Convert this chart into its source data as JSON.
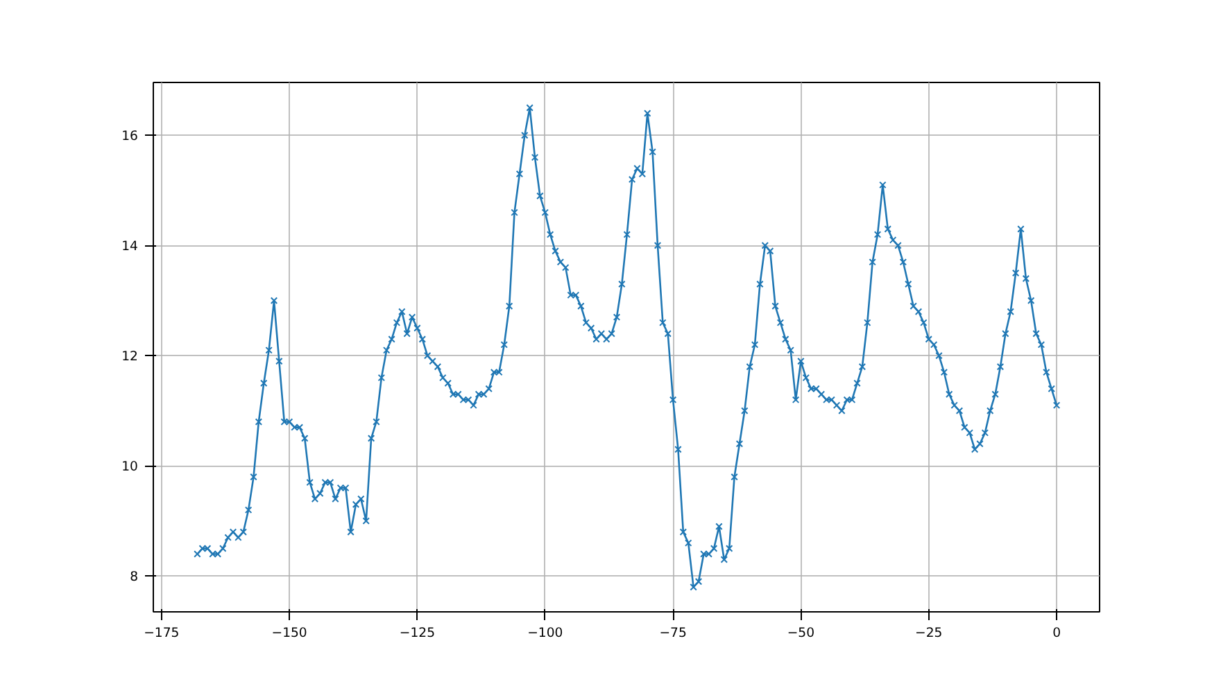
{
  "chart_data": {
    "type": "line",
    "marker": "cross",
    "line_style": "solid",
    "grid": true,
    "x": [
      -168,
      -167,
      -166,
      -165,
      -164,
      -163,
      -162,
      -161,
      -160,
      -159,
      -158,
      -157,
      -156,
      -155,
      -154,
      -153,
      -152,
      -151,
      -150,
      -149,
      -148,
      -147,
      -146,
      -145,
      -144,
      -143,
      -142,
      -141,
      -140,
      -139,
      -138,
      -137,
      -136,
      -135,
      -134,
      -133,
      -132,
      -131,
      -130,
      -129,
      -128,
      -127,
      -126,
      -125,
      -124,
      -123,
      -122,
      -121,
      -120,
      -119,
      -118,
      -117,
      -116,
      -115,
      -114,
      -113,
      -112,
      -111,
      -110,
      -109,
      -108,
      -107,
      -106,
      -105,
      -104,
      -103,
      -102,
      -101,
      -100,
      -99,
      -98,
      -97,
      -96,
      -95,
      -94,
      -93,
      -92,
      -91,
      -90,
      -89,
      -88,
      -87,
      -86,
      -85,
      -84,
      -83,
      -82,
      -81,
      -80,
      -79,
      -78,
      -77,
      -76,
      -75,
      -74,
      -73,
      -72,
      -71,
      -70,
      -69,
      -68,
      -67,
      -66,
      -65,
      -64,
      -63,
      -62,
      -61,
      -60,
      -59,
      -58,
      -57,
      -56,
      -55,
      -54,
      -53,
      -52,
      -51,
      -50,
      -49,
      -48,
      -47,
      -46,
      -45,
      -44,
      -43,
      -42,
      -41,
      -40,
      -39,
      -38,
      -37,
      -36,
      -35,
      -34,
      -33,
      -32,
      -31,
      -30,
      -29,
      -28,
      -27,
      -26,
      -25,
      -24,
      -23,
      -22,
      -21,
      -20,
      -19,
      -18,
      -17,
      -16,
      -15,
      -14,
      -13,
      -12,
      -11,
      -10,
      -9,
      -8,
      -7,
      -6,
      -5,
      -4,
      -3,
      -2,
      -1,
      0
    ],
    "series": [
      {
        "color": "#1f77b4",
        "values": [
          8.4,
          8.5,
          8.5,
          8.4,
          8.4,
          8.5,
          8.7,
          8.8,
          8.7,
          8.8,
          9.2,
          9.8,
          10.8,
          11.5,
          12.1,
          13.0,
          11.9,
          10.8,
          10.8,
          10.7,
          10.7,
          10.5,
          9.7,
          9.4,
          9.5,
          9.7,
          9.7,
          9.4,
          9.6,
          9.6,
          8.8,
          9.3,
          9.4,
          9.0,
          10.5,
          10.8,
          11.6,
          12.1,
          12.3,
          12.6,
          12.8,
          12.4,
          12.7,
          12.5,
          12.3,
          12.0,
          11.9,
          11.8,
          11.6,
          11.5,
          11.3,
          11.3,
          11.2,
          11.2,
          11.1,
          11.3,
          11.3,
          11.4,
          11.7,
          11.7,
          12.2,
          12.9,
          14.6,
          15.3,
          16.0,
          16.5,
          15.6,
          14.9,
          14.6,
          14.2,
          13.9,
          13.7,
          13.6,
          13.1,
          13.1,
          12.9,
          12.6,
          12.5,
          12.3,
          12.4,
          12.3,
          12.4,
          12.7,
          13.3,
          14.2,
          15.2,
          15.4,
          15.3,
          16.4,
          15.7,
          14.0,
          12.6,
          12.4,
          11.2,
          10.3,
          8.8,
          8.6,
          7.8,
          7.9,
          8.4,
          8.4,
          8.5,
          8.9,
          8.3,
          8.5,
          9.8,
          10.4,
          11.0,
          11.8,
          12.2,
          13.3,
          14.0,
          13.9,
          12.9,
          12.6,
          12.3,
          12.1,
          11.2,
          11.9,
          11.6,
          11.4,
          11.4,
          11.3,
          11.2,
          11.2,
          11.1,
          11.0,
          11.2,
          11.2,
          11.5,
          11.8,
          12.6,
          13.7,
          14.2,
          15.1,
          14.3,
          14.1,
          14.0,
          13.7,
          13.3,
          12.9,
          12.8,
          12.6,
          12.3,
          12.2,
          12.0,
          11.7,
          11.3,
          11.1,
          11.0,
          10.7,
          10.6,
          10.3,
          10.4,
          10.6,
          11.0,
          11.3,
          11.8,
          12.4,
          12.8,
          13.5,
          14.3,
          13.4,
          13.0,
          12.4,
          12.2,
          11.7,
          11.4,
          11.1
        ]
      }
    ],
    "xlim": [
      -176.6,
      8.4
    ],
    "ylim": [
      7.35,
      16.96
    ],
    "xticks": [
      {
        "value": -175,
        "label": "−175"
      },
      {
        "value": -150,
        "label": "−150"
      },
      {
        "value": -125,
        "label": "−125"
      },
      {
        "value": -100,
        "label": "−100"
      },
      {
        "value": -75,
        "label": "−75"
      },
      {
        "value": -50,
        "label": "−50"
      },
      {
        "value": -25,
        "label": "−25"
      },
      0
    ],
    "yticks": [
      8,
      10,
      12,
      14,
      16
    ]
  }
}
